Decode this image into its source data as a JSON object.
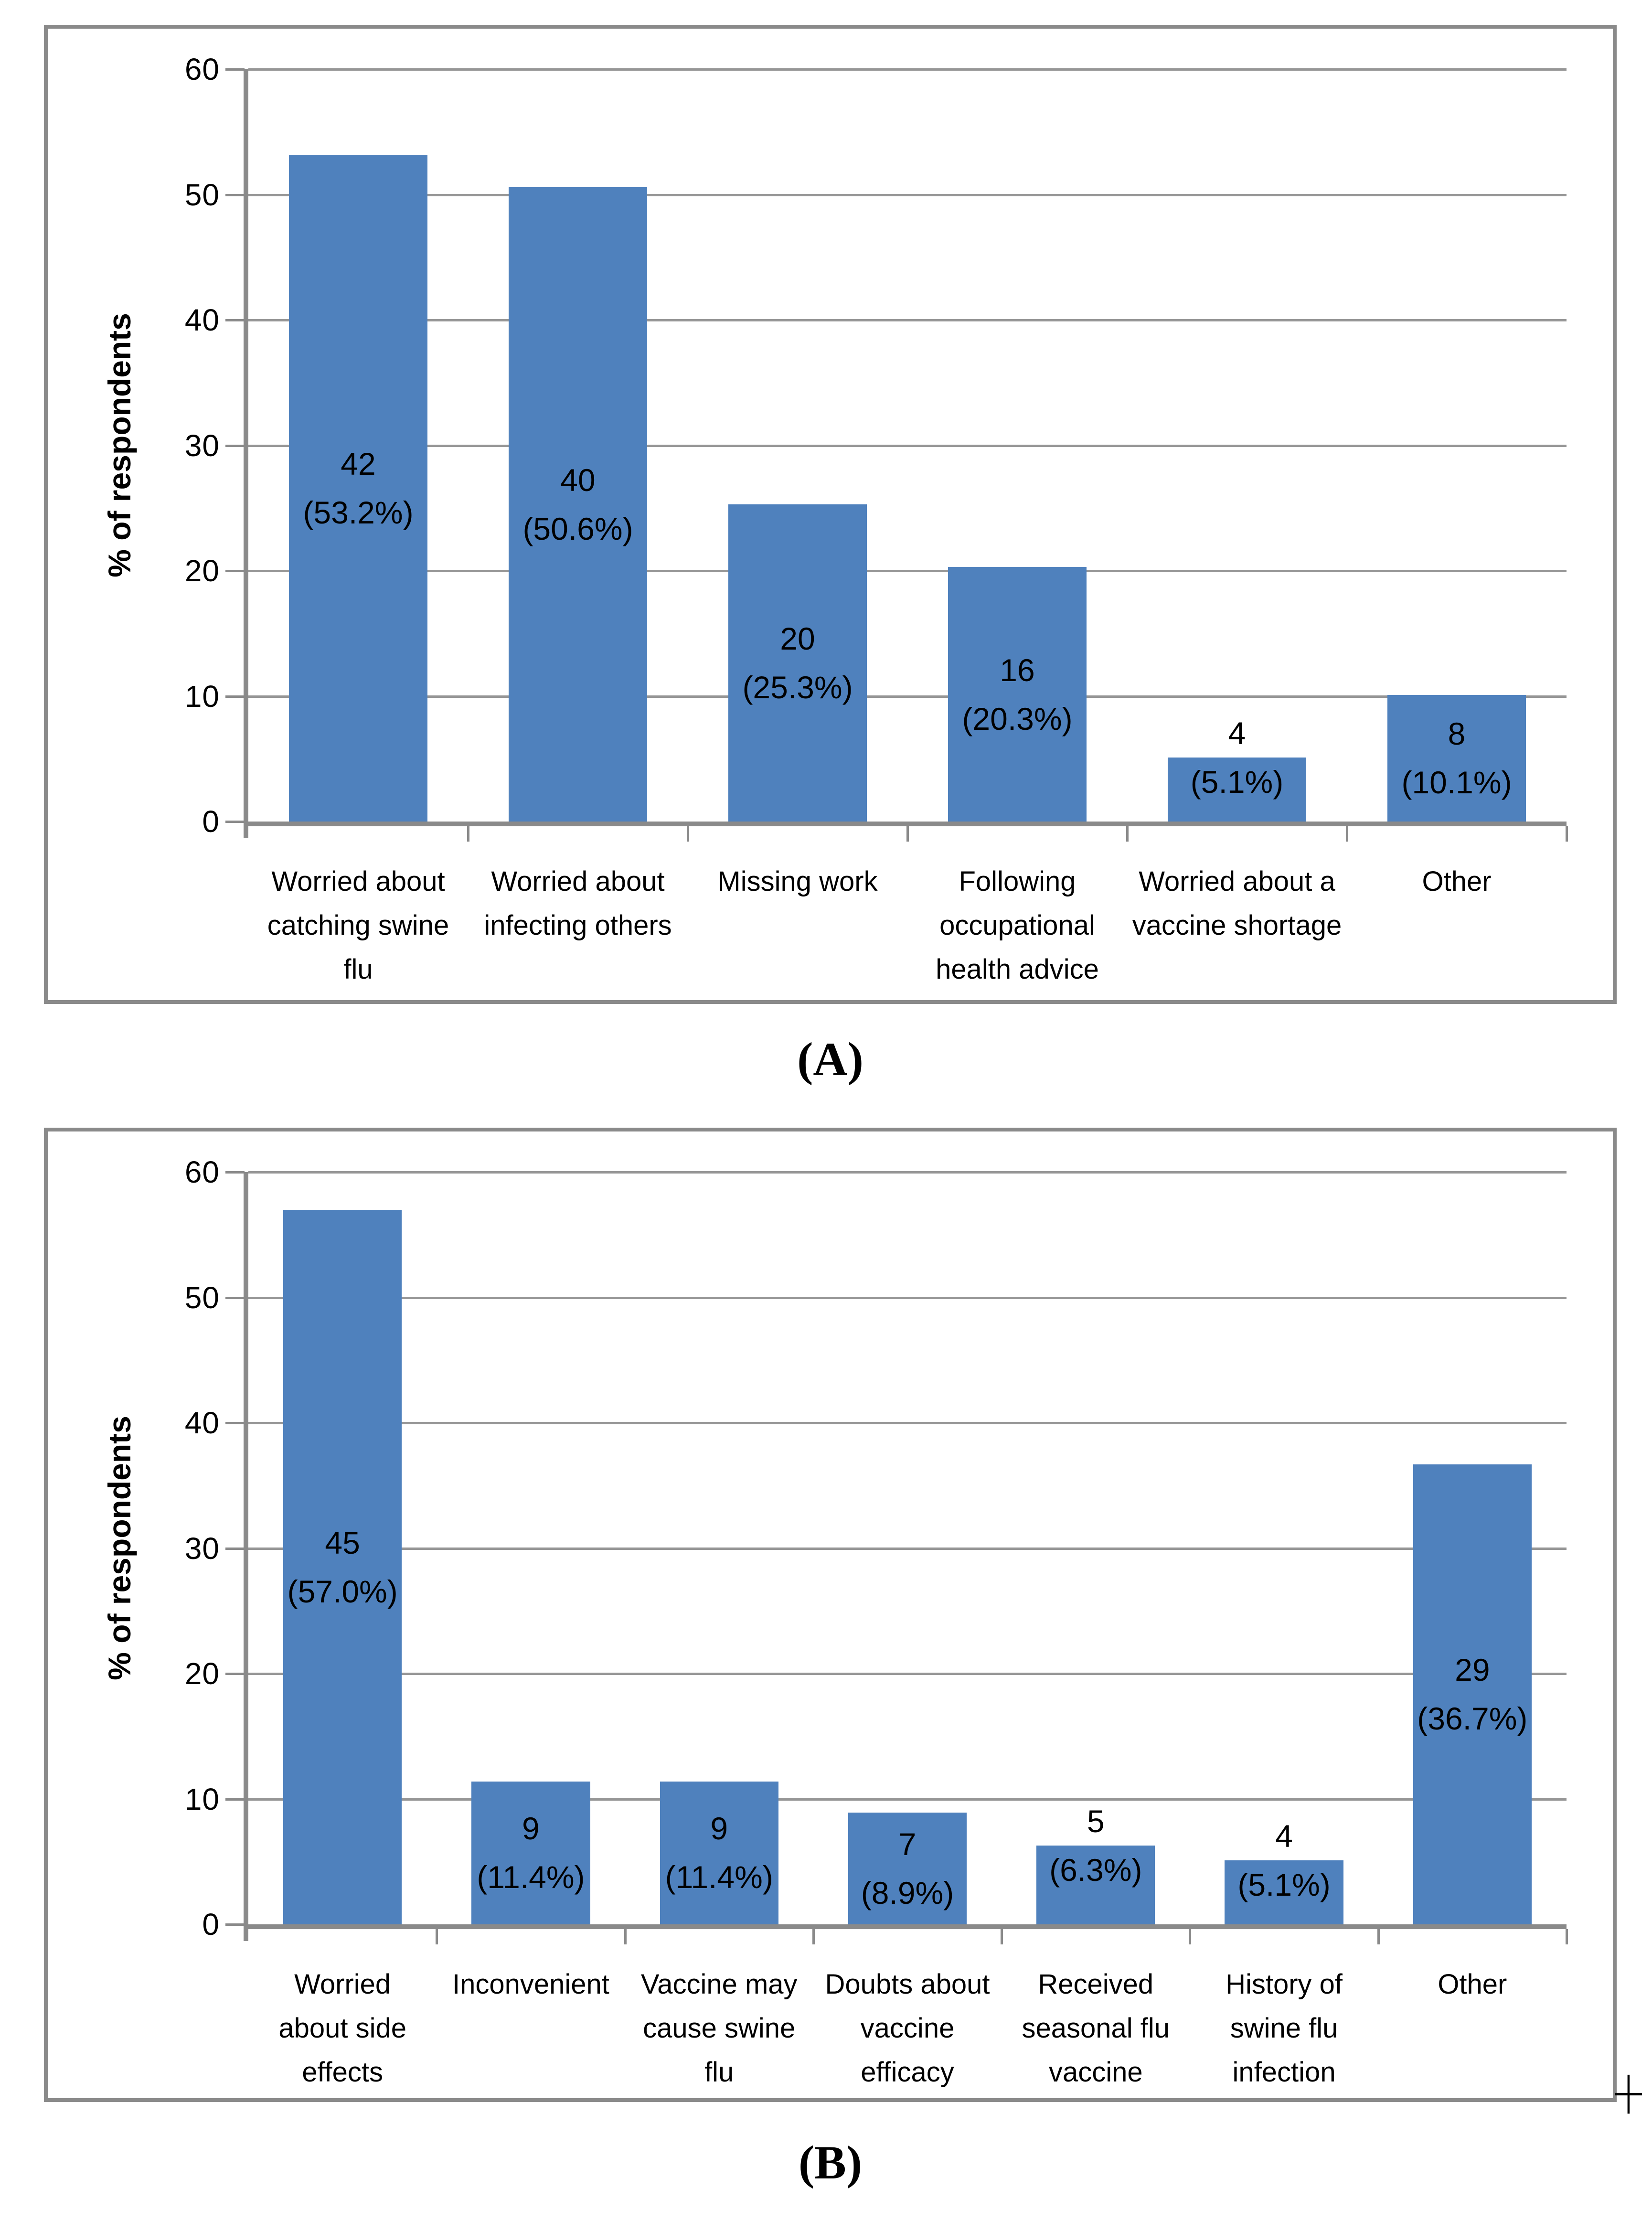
{
  "page": {
    "panel_a_caption": "(A)",
    "panel_b_caption": "(B)",
    "corner_mark": "+"
  },
  "style": {
    "bar_color": "#4F81BD",
    "grid_color": "#969696",
    "axis_color": "#8A8A8A",
    "border_color": "#8A8A8A",
    "text_color": "#000000"
  },
  "chart_data": [
    {
      "id": "A",
      "type": "bar",
      "title": "",
      "xlabel": "",
      "ylabel": "% of respondents",
      "ylim": [
        0,
        60
      ],
      "yticks": [
        0,
        10,
        20,
        30,
        40,
        50,
        60
      ],
      "grid": true,
      "legend_position": "none",
      "categories": [
        "Worried about\ncatching swine\nflu",
        "Worried about\ninfecting others",
        "Missing work",
        "Following\noccupational\nhealth advice",
        "Worried about a\nvaccine shortage",
        "Other"
      ],
      "counts": [
        42,
        40,
        20,
        16,
        4,
        8
      ],
      "values": [
        53.2,
        50.6,
        25.3,
        20.3,
        5.1,
        10.1
      ],
      "bar_labels": [
        "42\n(53.2%)",
        "40\n(50.6%)",
        "20\n(25.3%)",
        "16\n(20.3%)",
        "4\n(5.1%)",
        "8\n(10.1%)"
      ]
    },
    {
      "id": "B",
      "type": "bar",
      "title": "",
      "xlabel": "",
      "ylabel": "% of respondents",
      "ylim": [
        0,
        60
      ],
      "yticks": [
        0,
        10,
        20,
        30,
        40,
        50,
        60
      ],
      "grid": true,
      "legend_position": "none",
      "categories": [
        "Worried\nabout side\neffects",
        "Inconvenient",
        "Vaccine may\ncause swine\nflu",
        "Doubts about\nvaccine\nefficacy",
        "Received\nseasonal flu\nvaccine",
        "History of\nswine flu\ninfection",
        "Other"
      ],
      "counts": [
        45,
        9,
        9,
        7,
        5,
        4,
        29
      ],
      "values": [
        57.0,
        11.4,
        11.4,
        8.9,
        6.3,
        5.1,
        36.7
      ],
      "bar_labels": [
        "45\n(57.0%)",
        "9\n(11.4%)",
        "9\n(11.4%)",
        "7\n(8.9%)",
        "5\n(6.3%)",
        "4\n(5.1%)",
        "29\n(36.7%)"
      ]
    }
  ]
}
